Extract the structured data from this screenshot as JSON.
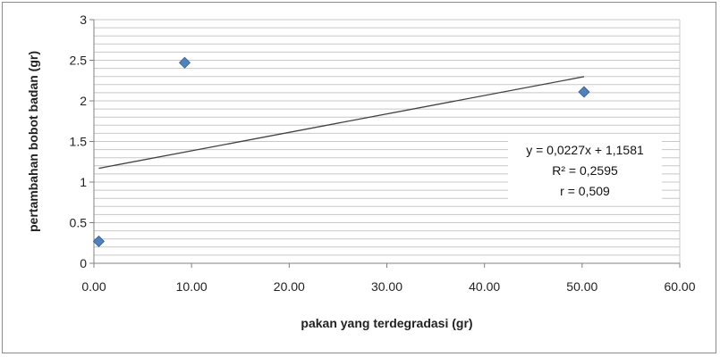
{
  "chart_data": {
    "type": "scatter",
    "xlabel": "pakan yang terdegradasi (gr)",
    "ylabel": "pertambahan bobot badan (gr)",
    "xlim": [
      0,
      60
    ],
    "ylim": [
      0,
      3
    ],
    "x_ticks": [
      "0.00",
      "10.00",
      "20.00",
      "30.00",
      "40.00",
      "50.00",
      "60.00"
    ],
    "y_ticks": [
      "0",
      "0.5",
      "1",
      "1.5",
      "2",
      "2.5",
      "3"
    ],
    "grid": true,
    "series": [
      {
        "color": "#4f81bd",
        "marker": "diamond",
        "points": [
          {
            "x": 0.5,
            "y": 0.27
          },
          {
            "x": 9.3,
            "y": 2.47
          },
          {
            "x": 50.2,
            "y": 2.11
          }
        ]
      }
    ],
    "trendline": {
      "slope": 0.0227,
      "intercept": 1.1581,
      "x_range": [
        0.5,
        50.2
      ],
      "color": "#404040"
    },
    "annotation": {
      "lines": [
        "y = 0,0227x + 1,1581",
        "R² = 0,2595",
        "r  = 0,509"
      ]
    }
  }
}
